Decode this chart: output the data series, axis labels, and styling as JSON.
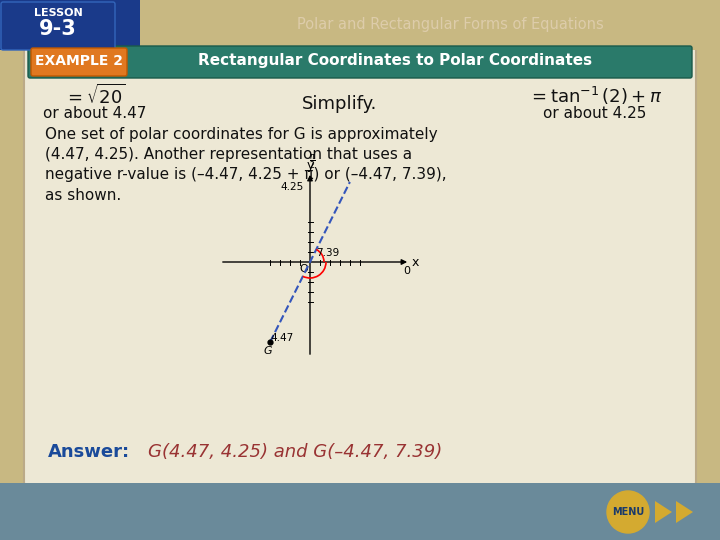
{
  "bg_color": "#c8b882",
  "slide_bg": "#ede8d8",
  "top_bar_color": "#1a4a9a",
  "header_teal": "#2a7a6a",
  "header_orange": "#e07820",
  "title_text": "Rectangular Coordinates to Polar Coordinates",
  "topic_text": "Polar and Rectangular Forms of Equations",
  "example_label": "EXAMPLE 2",
  "simplify_left2": "or about 4.47",
  "simplify_center": "Simplify.",
  "simplify_right2": "or about 4.25",
  "body_line1": "One set of polar coordinates for G is approximately",
  "body_line2": "(4.47, 4.25). Another representation that uses a",
  "body_line3": "negative r-value is (–4.47, 4.25 + π) or (–4.47, 7.39),",
  "body_line4": "as shown.",
  "answer_label": "Answer:",
  "answer_text": "G(4.47, 4.25) and G(–4.47, 7.39)",
  "answer_label_color": "#1a4a9a",
  "answer_text_color": "#993333",
  "body_text_color": "#111111",
  "nav_color": "#6a8a9a",
  "menu_color": "#d4aa30"
}
